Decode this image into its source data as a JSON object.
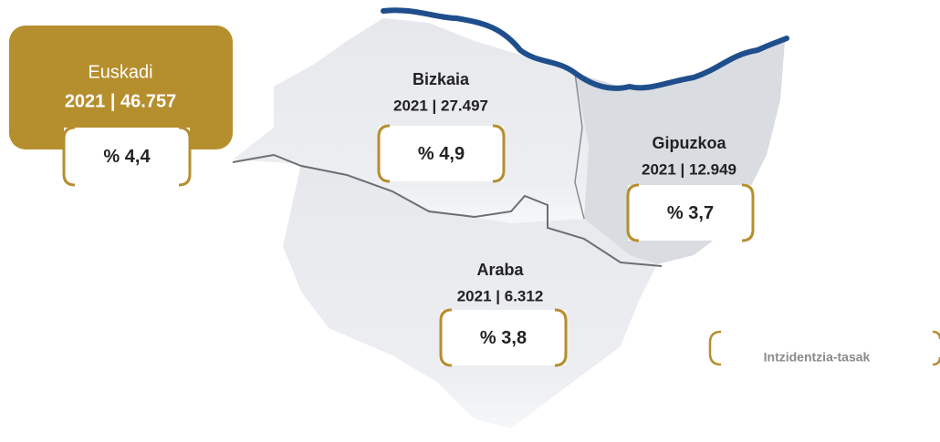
{
  "total": {
    "name": "Euskadi",
    "figure": "2021 | 46.757",
    "rate": "% 4,4"
  },
  "regions": [
    {
      "name": "Bizkaia",
      "figure": "2021 | 27.497",
      "rate": "% 4,9"
    },
    {
      "name": "Gipuzkoa",
      "figure": "2021 | 12.949",
      "rate": "% 3,7"
    },
    {
      "name": "Araba",
      "figure": "2021 | 6.312",
      "rate": "% 3,8"
    }
  ],
  "legend": "Intzidentzia-tasak"
}
